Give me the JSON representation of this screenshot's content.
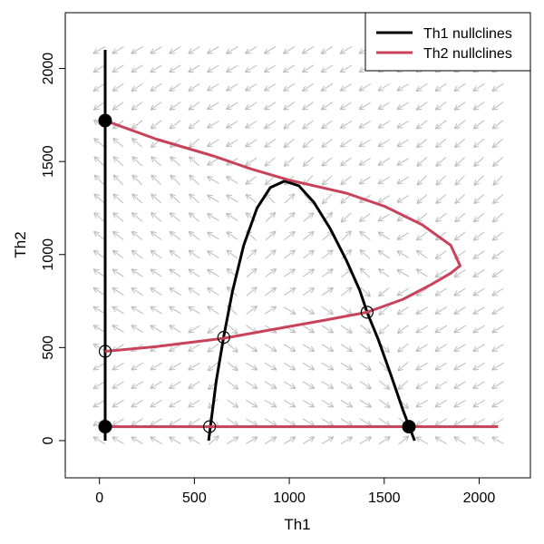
{
  "chart_data": {
    "type": "line",
    "xlabel": "Th1",
    "ylabel": "Th2",
    "xlim": [
      -180,
      2270
    ],
    "ylim": [
      -200,
      2300
    ],
    "x_ticks": [
      0,
      500,
      1000,
      1500,
      2000
    ],
    "y_ticks": [
      0,
      500,
      1000,
      1500,
      2000
    ],
    "x_tick_labels": [
      "0",
      "500",
      "1000",
      "1500",
      "2000"
    ],
    "y_tick_labels": [
      "0",
      "500",
      "1000",
      "1500",
      "2000"
    ],
    "grid": false,
    "legend": {
      "placement": "top-right",
      "entries": [
        {
          "label": "Th1 nullclines",
          "color": "#000000"
        },
        {
          "label": "Th2 nullclines",
          "color": "#c8435a"
        }
      ]
    },
    "series": [
      {
        "name": "Th1 nullclines",
        "color": "#000000",
        "segments": [
          [
            [
              30,
              0
            ],
            [
              30,
              2100
            ]
          ],
          [
            [
              575,
              0
            ],
            [
              585,
              80
            ],
            [
              615,
              320
            ],
            [
              655,
              560
            ],
            [
              700,
              800
            ],
            [
              760,
              1050
            ],
            [
              830,
              1250
            ],
            [
              900,
              1360
            ],
            [
              975,
              1395
            ],
            [
              1050,
              1370
            ],
            [
              1130,
              1280
            ],
            [
              1215,
              1140
            ],
            [
              1300,
              970
            ],
            [
              1370,
              810
            ],
            [
              1410,
              690
            ],
            [
              1470,
              540
            ],
            [
              1540,
              340
            ],
            [
              1600,
              160
            ],
            [
              1630,
              80
            ],
            [
              1660,
              0
            ]
          ]
        ]
      },
      {
        "name": "Th2 nullclines",
        "color": "#c8435a",
        "segments": [
          [
            [
              30,
              75
            ],
            [
              2100,
              75
            ]
          ],
          [
            [
              30,
              480
            ],
            [
              300,
              505
            ],
            [
              655,
              550
            ],
            [
              900,
              595
            ],
            [
              1200,
              650
            ],
            [
              1410,
              690
            ],
            [
              1600,
              760
            ],
            [
              1750,
              840
            ],
            [
              1850,
              900
            ],
            [
              1900,
              940
            ],
            [
              1850,
              1050
            ],
            [
              1700,
              1160
            ],
            [
              1500,
              1260
            ],
            [
              1300,
              1330
            ],
            [
              1000,
              1400
            ],
            [
              800,
              1460
            ],
            [
              600,
              1530
            ],
            [
              300,
              1620
            ],
            [
              30,
              1720
            ]
          ]
        ]
      }
    ],
    "equilibria": [
      {
        "x": 30,
        "y": 1720,
        "stable": true
      },
      {
        "x": 30,
        "y": 480,
        "stable": false
      },
      {
        "x": 30,
        "y": 75,
        "stable": true
      },
      {
        "x": 580,
        "y": 75,
        "stable": false
      },
      {
        "x": 1630,
        "y": 75,
        "stable": true
      },
      {
        "x": 655,
        "y": 555,
        "stable": false
      },
      {
        "x": 1410,
        "y": 690,
        "stable": false
      }
    ],
    "vector_field": {
      "x_range": [
        0,
        2100
      ],
      "y_range": [
        0,
        2100
      ],
      "step": 100,
      "color": "#bbbbbb"
    }
  }
}
